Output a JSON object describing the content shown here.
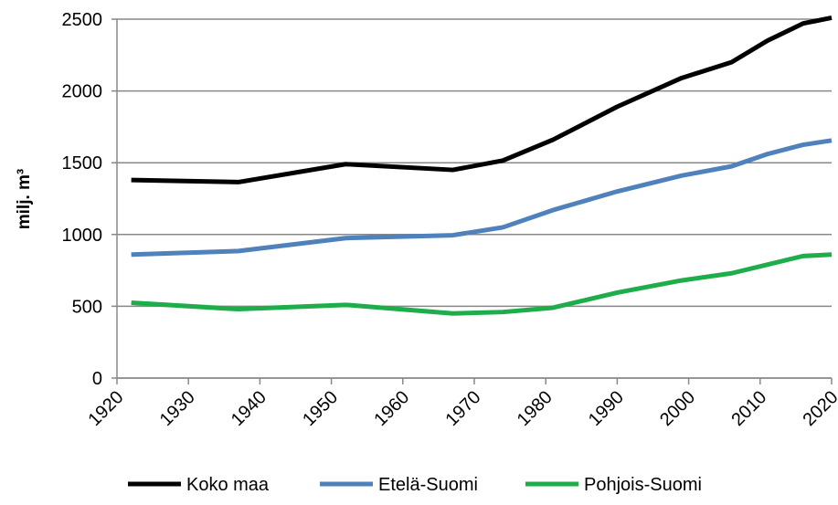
{
  "chart_data": {
    "type": "line",
    "y_label": "milj. m³",
    "x": [
      1922,
      1937,
      1952,
      1967,
      1974,
      1981,
      1990,
      1999,
      2006,
      2011,
      2016,
      2020
    ],
    "series": [
      {
        "name": "Koko maa",
        "color": "#000000",
        "values": [
          1380,
          1365,
          1490,
          1450,
          1515,
          1660,
          1890,
          2090,
          2200,
          2350,
          2470,
          2510
        ]
      },
      {
        "name": "Etelä-Suomi",
        "color": "#4f81bd",
        "values": [
          860,
          885,
          975,
          995,
          1050,
          1170,
          1300,
          1410,
          1475,
          1560,
          1625,
          1655
        ]
      },
      {
        "name": "Pohjois-Suomi",
        "color": "#1fad4b",
        "values": [
          525,
          480,
          510,
          450,
          460,
          490,
          595,
          680,
          730,
          790,
          850,
          860
        ]
      }
    ],
    "xlim": [
      1920,
      2020
    ],
    "xticks": [
      1920,
      1930,
      1940,
      1950,
      1960,
      1970,
      1980,
      1990,
      2000,
      2010,
      2020
    ],
    "ylim": [
      0,
      2500
    ],
    "yticks": [
      0,
      500,
      1000,
      1500,
      2000,
      2500
    ],
    "grid": true,
    "legend": "bottom"
  }
}
